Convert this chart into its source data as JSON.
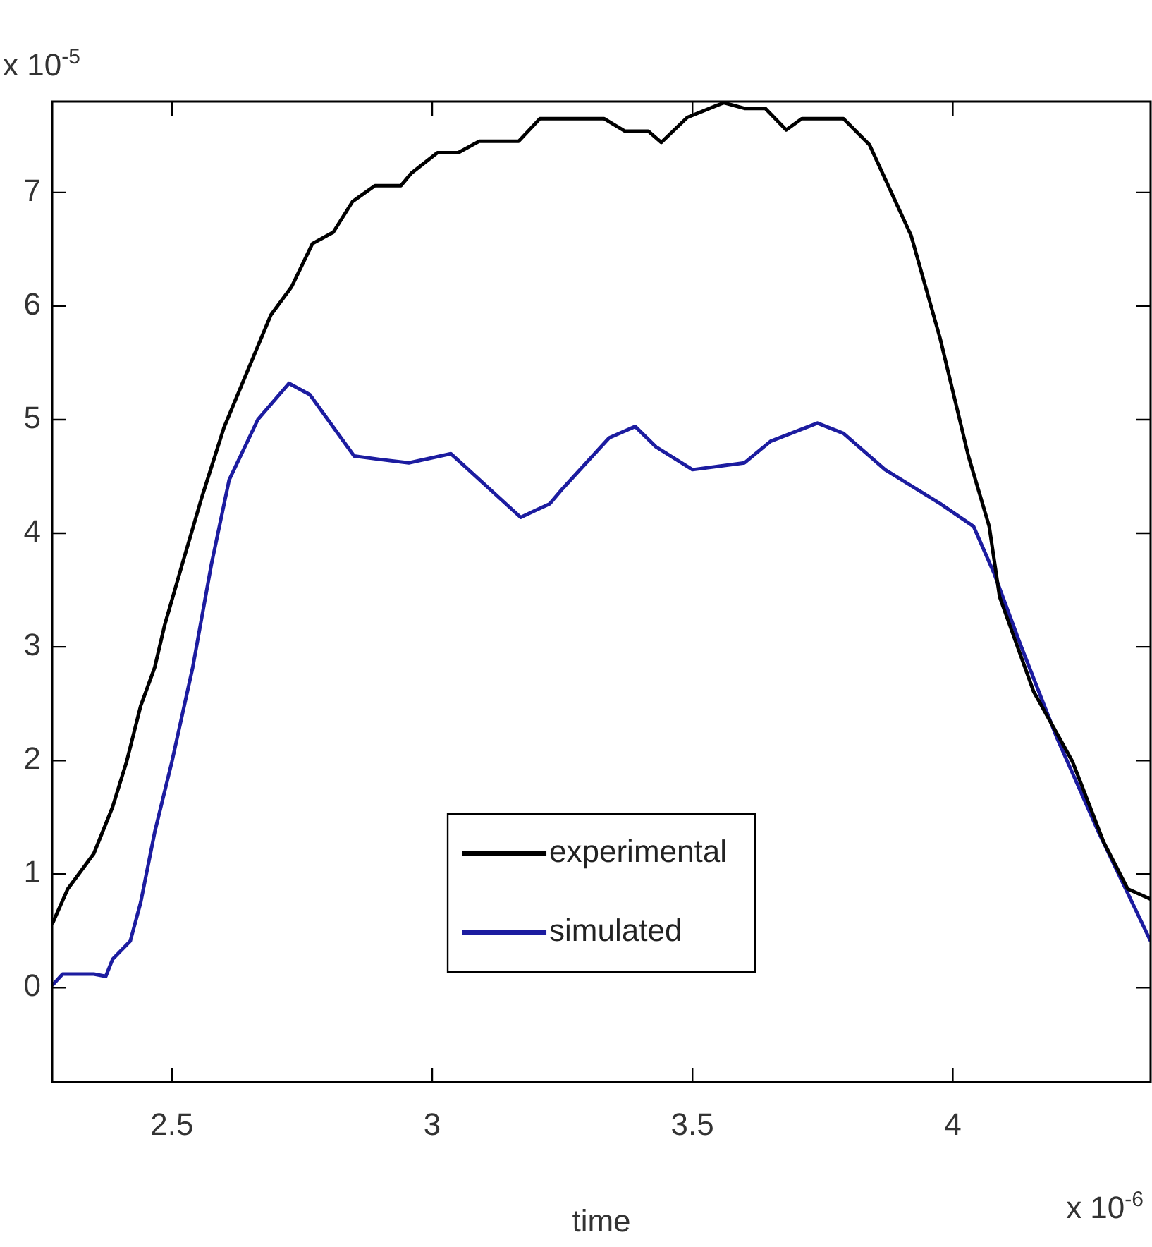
{
  "chart_data": {
    "type": "line",
    "xlabel": "time",
    "annotations": [
      "x 10$^{-5}$",
      "x 10$^{-6}$"
    ],
    "xlim": [
      2.27,
      4.38
    ],
    "ylim": [
      -0.83,
      7.8
    ],
    "xticks": [
      2.5,
      3,
      3.5,
      4
    ],
    "yticks": [
      0,
      1,
      2,
      3,
      4,
      5,
      6,
      7
    ],
    "grid": false,
    "legend": "bottom",
    "marker": "none",
    "line_style": "solid",
    "series": [
      {
        "name": "experimental",
        "color": "#000000",
        "x": [
          2.27,
          2.3,
          2.35,
          2.386,
          2.413,
          2.44,
          2.467,
          2.486,
          2.52,
          2.557,
          2.6,
          2.649,
          2.69,
          2.73,
          2.77,
          2.81,
          2.847,
          2.89,
          2.94,
          2.96,
          3.01,
          3.05,
          3.09,
          3.166,
          3.207,
          3.33,
          3.37,
          3.415,
          3.44,
          3.49,
          3.56,
          3.6,
          3.64,
          3.68,
          3.71,
          3.79,
          3.84,
          3.92,
          3.976,
          4.03,
          4.07,
          4.09,
          4.155,
          4.23,
          4.29,
          4.336,
          4.38
        ],
        "values": [
          0.56,
          0.87,
          1.18,
          1.59,
          1.99,
          2.48,
          2.82,
          3.19,
          3.73,
          4.31,
          4.93,
          5.47,
          5.92,
          6.17,
          6.55,
          6.65,
          6.92,
          7.06,
          7.06,
          7.17,
          7.35,
          7.35,
          7.45,
          7.45,
          7.65,
          7.65,
          7.54,
          7.54,
          7.44,
          7.66,
          7.79,
          7.74,
          7.74,
          7.55,
          7.65,
          7.65,
          7.42,
          6.62,
          5.71,
          4.68,
          4.06,
          3.44,
          2.61,
          1.99,
          1.28,
          0.87,
          0.78
        ]
      },
      {
        "name": "simulated",
        "color": "#1c1ca0",
        "x": [
          2.27,
          2.29,
          2.35,
          2.373,
          2.386,
          2.42,
          2.44,
          2.467,
          2.5,
          2.54,
          2.576,
          2.61,
          2.665,
          2.725,
          2.765,
          2.85,
          2.9,
          2.955,
          3.036,
          3.06,
          3.17,
          3.226,
          3.25,
          3.34,
          3.39,
          3.43,
          3.5,
          3.6,
          3.65,
          3.74,
          3.79,
          3.87,
          3.976,
          4.04,
          4.08,
          4.13,
          4.2,
          4.28,
          4.38
        ],
        "values": [
          0.02,
          0.12,
          0.12,
          0.1,
          0.25,
          0.41,
          0.75,
          1.37,
          1.99,
          2.82,
          3.73,
          4.47,
          5.0,
          5.32,
          5.22,
          4.68,
          4.65,
          4.62,
          4.7,
          4.6,
          4.14,
          4.26,
          4.39,
          4.84,
          4.94,
          4.76,
          4.56,
          4.62,
          4.81,
          4.97,
          4.88,
          4.56,
          4.26,
          4.06,
          3.64,
          3.02,
          2.2,
          1.37,
          0.41
        ]
      }
    ]
  }
}
